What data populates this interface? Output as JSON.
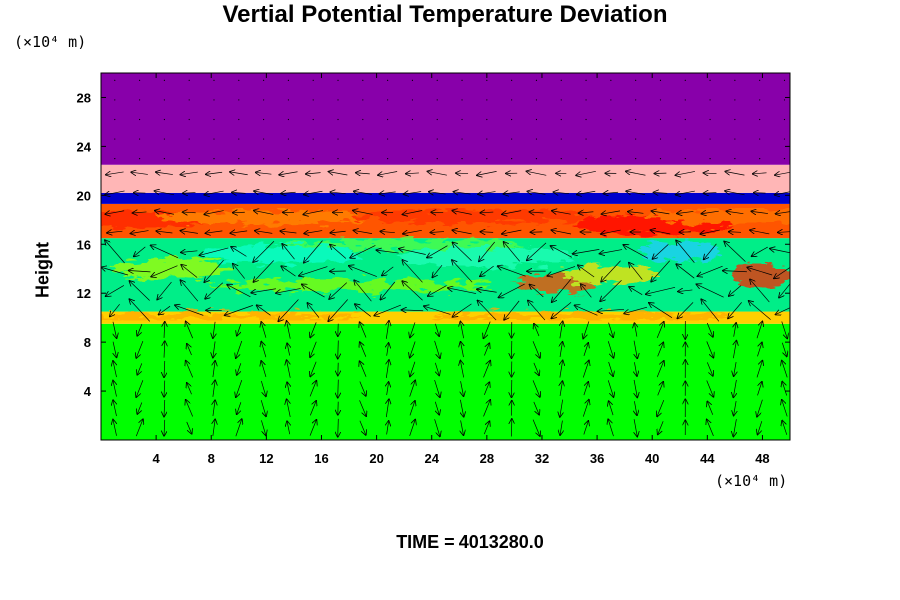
{
  "chart_data": {
    "type": "heatmap",
    "title": "Vertial Potential Temperature Deviation",
    "ylabel": "Height",
    "y_unit": "(×10⁴ m)",
    "x_unit": "(×10⁴ m)",
    "x_ticks": [
      4,
      8,
      12,
      16,
      20,
      24,
      28,
      32,
      36,
      40,
      44,
      48
    ],
    "y_ticks": [
      4,
      8,
      12,
      16,
      20,
      24,
      28
    ],
    "xlim": [
      0,
      50
    ],
    "ylim": [
      0,
      30
    ],
    "vector_overlay": true,
    "layers": [
      {
        "from": 0,
        "to": 9.5,
        "color": "#00ff00"
      },
      {
        "from": 9.5,
        "to": 10.5,
        "color": "#ffd000"
      },
      {
        "from": 10.5,
        "to": 16.5,
        "color": "#00ee88"
      },
      {
        "from": 16.5,
        "to": 19.3,
        "color": "#ff5500"
      },
      {
        "from": 19.3,
        "to": 20.2,
        "color": "#0000cc"
      },
      {
        "from": 20.2,
        "to": 22.5,
        "color": "#ffb6b6"
      },
      {
        "from": 22.5,
        "to": 30,
        "color": "#8800aa"
      }
    ]
  },
  "footer": {
    "time_label": "TIME =",
    "time_value": "4013280.0"
  }
}
